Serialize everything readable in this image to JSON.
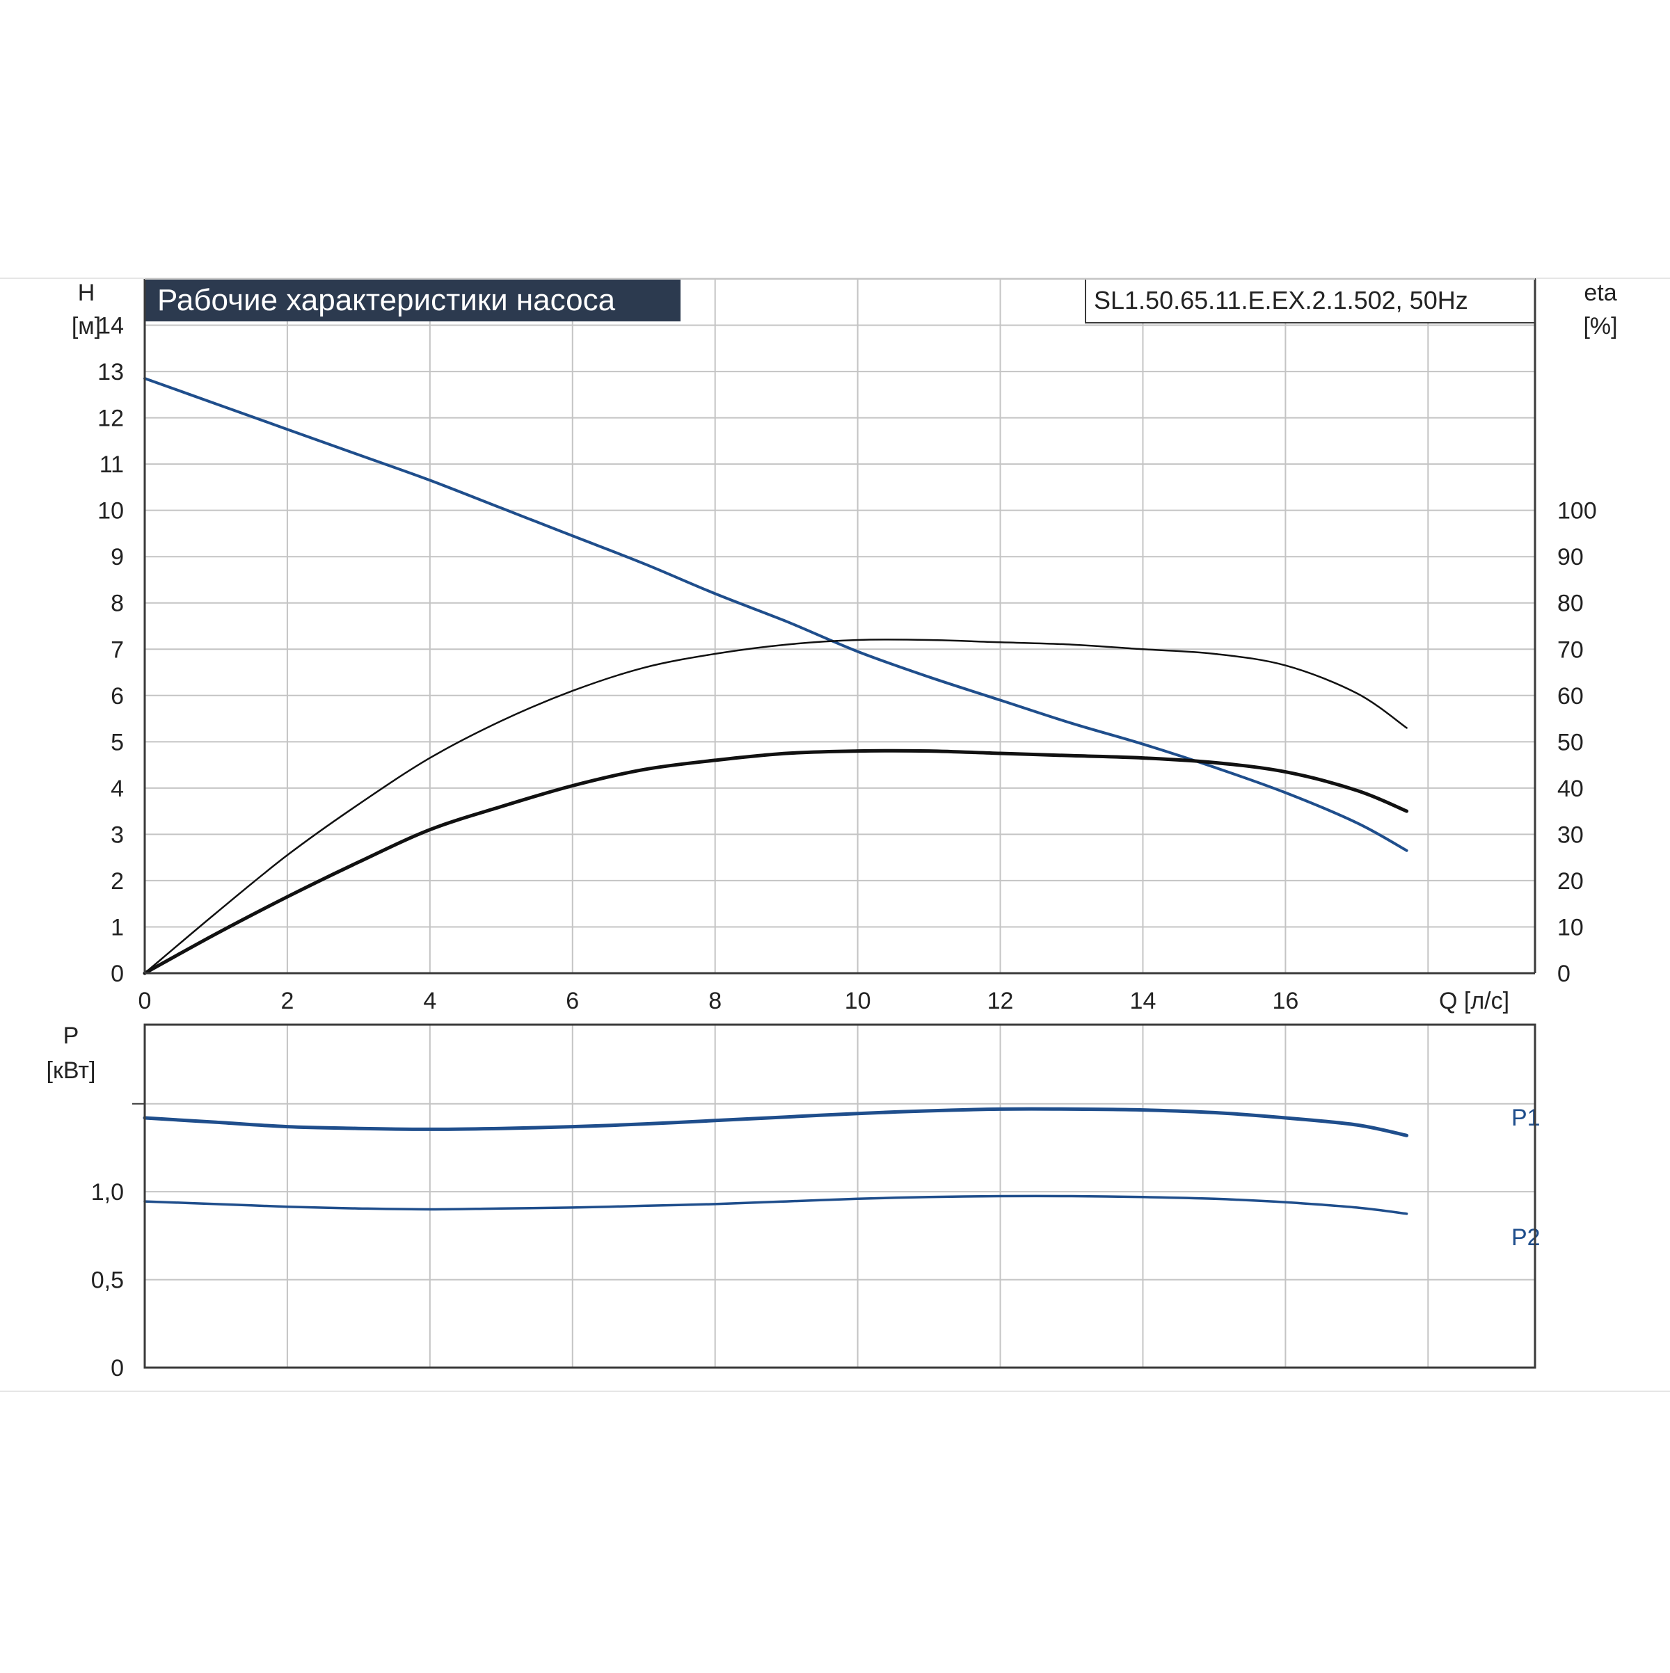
{
  "colors": {
    "grid": "#c4c4c4",
    "frame": "#3a3a3a",
    "title_bg": "#2c3a4f",
    "title_fg": "#ffffff",
    "blue": "#1f4e8c",
    "black": "#111111",
    "text": "#222222"
  },
  "chart_data": [
    {
      "type": "line",
      "title": "Рабочие характеристики насоса",
      "model_label": "SL1.50.65.11.E.EX.2.1.502, 50Hz",
      "xlabel": "Q [л/с]",
      "ylabel_left": "H",
      "ylabel_left_unit": "[м]",
      "ylabel_right": "eta",
      "ylabel_right_unit": "[%]",
      "xlim": [
        0,
        19.5
      ],
      "ylim": [
        0,
        15
      ],
      "y2lim": [
        0,
        150
      ],
      "x_ticks": [
        0,
        2,
        4,
        6,
        8,
        10,
        12,
        14,
        16
      ],
      "y_ticks": [
        0,
        1,
        2,
        3,
        4,
        5,
        6,
        7,
        8,
        9,
        10,
        11,
        12,
        13,
        14
      ],
      "y2_ticks": [
        0,
        10,
        20,
        30,
        40,
        50,
        60,
        70,
        80,
        90,
        100
      ],
      "grid": true,
      "series": [
        {
          "name": "",
          "axis": "left",
          "color": "blue",
          "width": 4,
          "x": [
            0,
            1,
            2,
            3,
            4,
            5,
            6,
            7,
            8,
            9,
            10,
            11,
            12,
            13,
            14,
            15,
            16,
            17,
            17.7
          ],
          "y": [
            12.85,
            12.3,
            11.75,
            11.2,
            10.65,
            10.05,
            9.45,
            8.85,
            8.2,
            7.6,
            6.95,
            6.4,
            5.9,
            5.4,
            4.95,
            4.45,
            3.9,
            3.25,
            2.65
          ]
        },
        {
          "name": "",
          "axis": "right",
          "color": "black",
          "width": 2.5,
          "x": [
            0,
            1,
            2,
            3,
            4,
            5,
            6,
            7,
            8,
            9,
            10,
            11,
            12,
            13,
            14,
            15,
            16,
            17,
            17.7
          ],
          "y": [
            0,
            13,
            25.5,
            36.5,
            46.5,
            54.5,
            61,
            66,
            69,
            71,
            72,
            72,
            71.5,
            71,
            70,
            69,
            66.5,
            60.5,
            53
          ]
        },
        {
          "name": "",
          "axis": "right",
          "color": "black",
          "width": 5,
          "x": [
            0,
            1,
            2,
            3,
            4,
            5,
            6,
            7,
            8,
            9,
            10,
            11,
            12,
            13,
            14,
            15,
            16,
            17,
            17.7
          ],
          "y": [
            0,
            8.5,
            16.5,
            24,
            31,
            36,
            40.5,
            44,
            46,
            47.5,
            48,
            48,
            47.5,
            47,
            46.5,
            45.5,
            43.5,
            39.5,
            35
          ]
        }
      ]
    },
    {
      "type": "line",
      "ylabel": "P",
      "ylabel_unit": "[кВт]",
      "xlim": [
        0,
        19.5
      ],
      "ylim": [
        0,
        1.95
      ],
      "y_grid": [
        0,
        0.5,
        1.0,
        1.5
      ],
      "y_tick_labels": [
        {
          "value": 0,
          "label": "0"
        },
        {
          "value": 0.5,
          "label": "0,5"
        },
        {
          "value": 1.0,
          "label": "1,0"
        }
      ],
      "grid": true,
      "series": [
        {
          "name": "P1",
          "color": "blue",
          "width": 5,
          "x": [
            0,
            1,
            2,
            3,
            4,
            5,
            6,
            7,
            8,
            9,
            10,
            11,
            12,
            13,
            14,
            15,
            16,
            17,
            17.7
          ],
          "y": [
            1.42,
            1.395,
            1.37,
            1.36,
            1.355,
            1.36,
            1.37,
            1.385,
            1.405,
            1.425,
            1.445,
            1.46,
            1.47,
            1.47,
            1.465,
            1.45,
            1.42,
            1.38,
            1.32
          ]
        },
        {
          "name": "P2",
          "color": "blue",
          "width": 3.5,
          "x": [
            0,
            1,
            2,
            3,
            4,
            5,
            6,
            7,
            8,
            9,
            10,
            11,
            12,
            13,
            14,
            15,
            16,
            17,
            17.7
          ],
          "y": [
            0.945,
            0.93,
            0.915,
            0.905,
            0.9,
            0.905,
            0.91,
            0.92,
            0.93,
            0.945,
            0.96,
            0.97,
            0.975,
            0.975,
            0.97,
            0.96,
            0.94,
            0.91,
            0.875
          ]
        }
      ]
    }
  ]
}
